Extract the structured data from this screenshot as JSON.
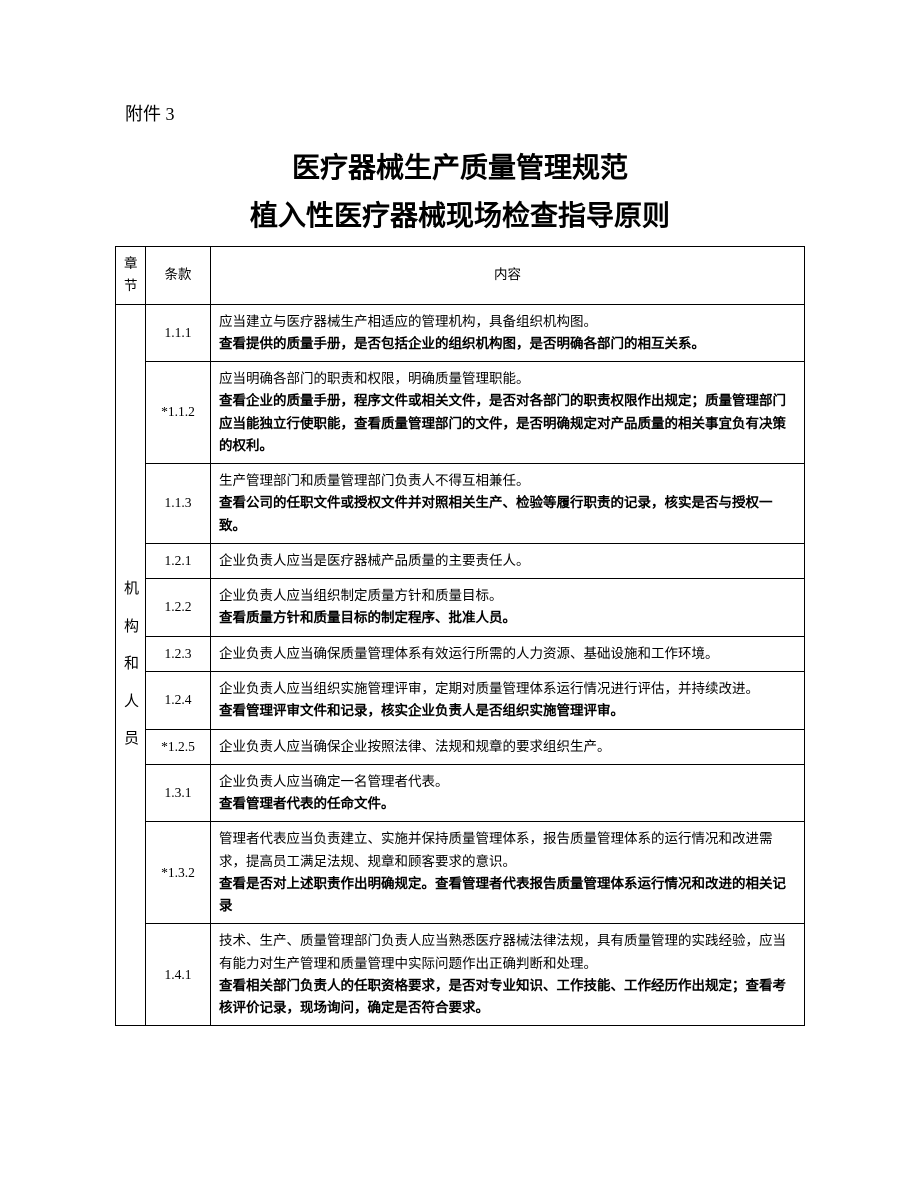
{
  "attachment_label": "附件 3",
  "title_line1": "医疗器械生产质量管理规范",
  "title_line2": "植入性医疗器械现场检查指导原则",
  "headers": {
    "chapter": "章节",
    "clause": "条款",
    "content": "内容"
  },
  "chapter_label": "机构和人员",
  "rows": [
    {
      "clause": "1.1.1",
      "content": [
        {
          "text": "应当建立与医疗器械生产相适应的管理机构，具备组织机构图。",
          "bold": false
        },
        {
          "text": "查看提供的质量手册，是否包括企业的组织机构图，是否明确各部门的相互关系。",
          "bold": true
        }
      ]
    },
    {
      "clause": "*1.1.2",
      "content": [
        {
          "text": "应当明确各部门的职责和权限，明确质量管理职能。",
          "bold": false
        },
        {
          "text": "查看企业的质量手册，程序文件或相关文件，是否对各部门的职责权限作出规定；质量管理部门应当能独立行使职能，查看质量管理部门的文件，是否明确规定对产品质量的相关事宜负有决策的权利。",
          "bold": true
        }
      ]
    },
    {
      "clause": "1.1.3",
      "content": [
        {
          "text": "生产管理部门和质量管理部门负责人不得互相兼任。",
          "bold": false
        },
        {
          "text": "查看公司的任职文件或授权文件并对照相关生产、检验等履行职责的记录，核实是否与授权一致。",
          "bold": true
        }
      ]
    },
    {
      "clause": "1.2.1",
      "content": [
        {
          "text": "企业负责人应当是医疗器械产品质量的主要责任人。",
          "bold": false
        }
      ]
    },
    {
      "clause": "1.2.2",
      "content": [
        {
          "text": "企业负责人应当组织制定质量方针和质量目标。",
          "bold": false
        },
        {
          "text": "查看质量方针和质量目标的制定程序、批准人员。",
          "bold": true
        }
      ]
    },
    {
      "clause": "1.2.3",
      "content": [
        {
          "text": "企业负责人应当确保质量管理体系有效运行所需的人力资源、基础设施和工作环境。",
          "bold": false
        }
      ]
    },
    {
      "clause": "1.2.4",
      "content": [
        {
          "text": "企业负责人应当组织实施管理评审，定期对质量管理体系运行情况进行评估，并持续改进。",
          "bold": false
        },
        {
          "text": "查看管理评审文件和记录，核实企业负责人是否组织实施管理评审。",
          "bold": true
        }
      ]
    },
    {
      "clause": "*1.2.5",
      "content": [
        {
          "text": "企业负责人应当确保企业按照法律、法规和规章的要求组织生产。",
          "bold": false
        }
      ]
    },
    {
      "clause": "1.3.1",
      "content": [
        {
          "text": "企业负责人应当确定一名管理者代表。",
          "bold": false
        },
        {
          "text": "查看管理者代表的任命文件。",
          "bold": true
        }
      ]
    },
    {
      "clause": "*1.3.2",
      "content": [
        {
          "text": "管理者代表应当负责建立、实施并保持质量管理体系，报告质量管理体系的运行情况和改进需求，提高员工满足法规、规章和顾客要求的意识。",
          "bold": false
        },
        {
          "text": "查看是否对上述职责作出明确规定。查看管理者代表报告质量管理体系运行情况和改进的相关记录",
          "bold": true
        }
      ]
    },
    {
      "clause": "1.4.1",
      "content": [
        {
          "text": "技术、生产、质量管理部门负责人应当熟悉医疗器械法律法规，具有质量管理的实践经验，应当有能力对生产管理和质量管理中实际问题作出正确判断和处理。",
          "bold": false
        },
        {
          "text": "查看相关部门负责人的任职资格要求，是否对专业知识、工作技能、工作经历作出规定；查看考核评价记录，现场询问，确定是否符合要求。",
          "bold": true
        }
      ]
    }
  ]
}
